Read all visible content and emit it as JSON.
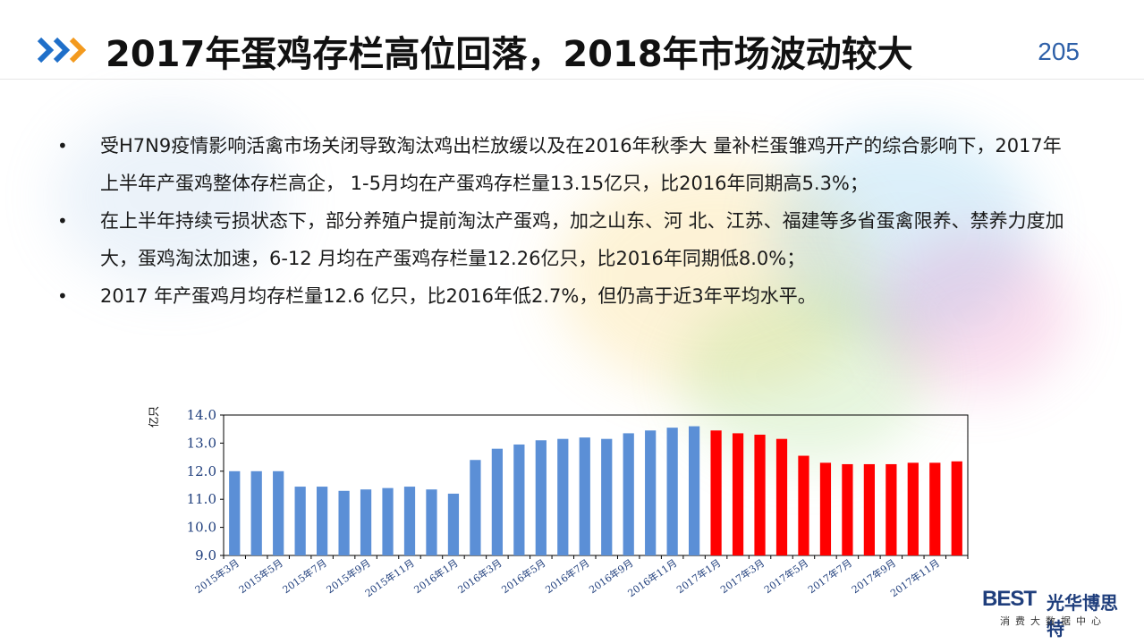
{
  "header": {
    "title": "2017年蛋鸡存栏高位回落，2018年市场波动较大",
    "page_number": "205"
  },
  "bullets": [
    "受H7N9疫情影响活禽市场关闭导致淘汰鸡出栏放缓以及在2016年秋季大 量补栏蛋雏鸡开产的综合影响下，2017年上半年产蛋鸡整体存栏高企， 1-5月均在产蛋鸡存栏量13.15亿只，比2016年同期高5.3%；",
    "在上半年持续亏损状态下，部分养殖户提前淘汰产蛋鸡，加之山东、河 北、江苏、福建等多省蛋禽限养、禁养力度加大，蛋鸡淘汰加速，6-12 月均在产蛋鸡存栏量12.26亿只，比2016年同期低8.0%；",
    "2017 年产蛋鸡月均存栏量12.6 亿只，比2016年低2.7%，但仍高于近3年平均水平。"
  ],
  "logo": {
    "brand": "BEST",
    "name": "光华博思特",
    "subtitle": "消费大数据中心"
  },
  "colors": {
    "series_2015_2016": "#5b8fd6",
    "series_2017": "#ff0000",
    "title": "#111111",
    "page_number": "#2d5fa8",
    "chevron_blue": "#1f6fc9",
    "chevron_orange": "#f39a1e"
  },
  "chart_data": {
    "type": "bar",
    "ylabel": "亿只",
    "ylim": [
      9.0,
      14.0
    ],
    "yticks": [
      "9.0",
      "10.0",
      "11.0",
      "12.0",
      "13.0",
      "14.0"
    ],
    "categories": [
      "2015年3月",
      "2015年4月",
      "2015年5月",
      "2015年6月",
      "2015年7月",
      "2015年8月",
      "2015年9月",
      "2015年10月",
      "2015年11月",
      "2015年12月",
      "2016年1月",
      "2016年2月",
      "2016年3月",
      "2016年4月",
      "2016年5月",
      "2016年6月",
      "2016年7月",
      "2016年8月",
      "2016年9月",
      "2016年10月",
      "2016年11月",
      "2016年12月",
      "2017年1月",
      "2017年2月",
      "2017年3月",
      "2017年4月",
      "2017年5月",
      "2017年6月",
      "2017年7月",
      "2017年8月",
      "2017年9月",
      "2017年10月",
      "2017年11月",
      "2017年12月"
    ],
    "tick_labels": [
      "2015年3月",
      "2015年5月",
      "2015年7月",
      "2015年9月",
      "2015年11月",
      "2016年1月",
      "2016年3月",
      "2016年5月",
      "2016年7月",
      "2016年9月",
      "2016年11月",
      "2017年1月",
      "2017年3月",
      "2017年5月",
      "2017年7月",
      "2017年9月",
      "2017年11月"
    ],
    "values": [
      12.0,
      12.0,
      12.0,
      11.45,
      11.45,
      11.3,
      11.35,
      11.4,
      11.45,
      11.35,
      11.2,
      12.4,
      12.8,
      12.95,
      13.1,
      13.15,
      13.2,
      13.15,
      13.35,
      13.45,
      13.55,
      13.6,
      13.45,
      13.35,
      13.3,
      13.15,
      12.55,
      12.3,
      12.25,
      12.25,
      12.25,
      12.3,
      12.3,
      12.35
    ],
    "series_split_index": 22
  }
}
